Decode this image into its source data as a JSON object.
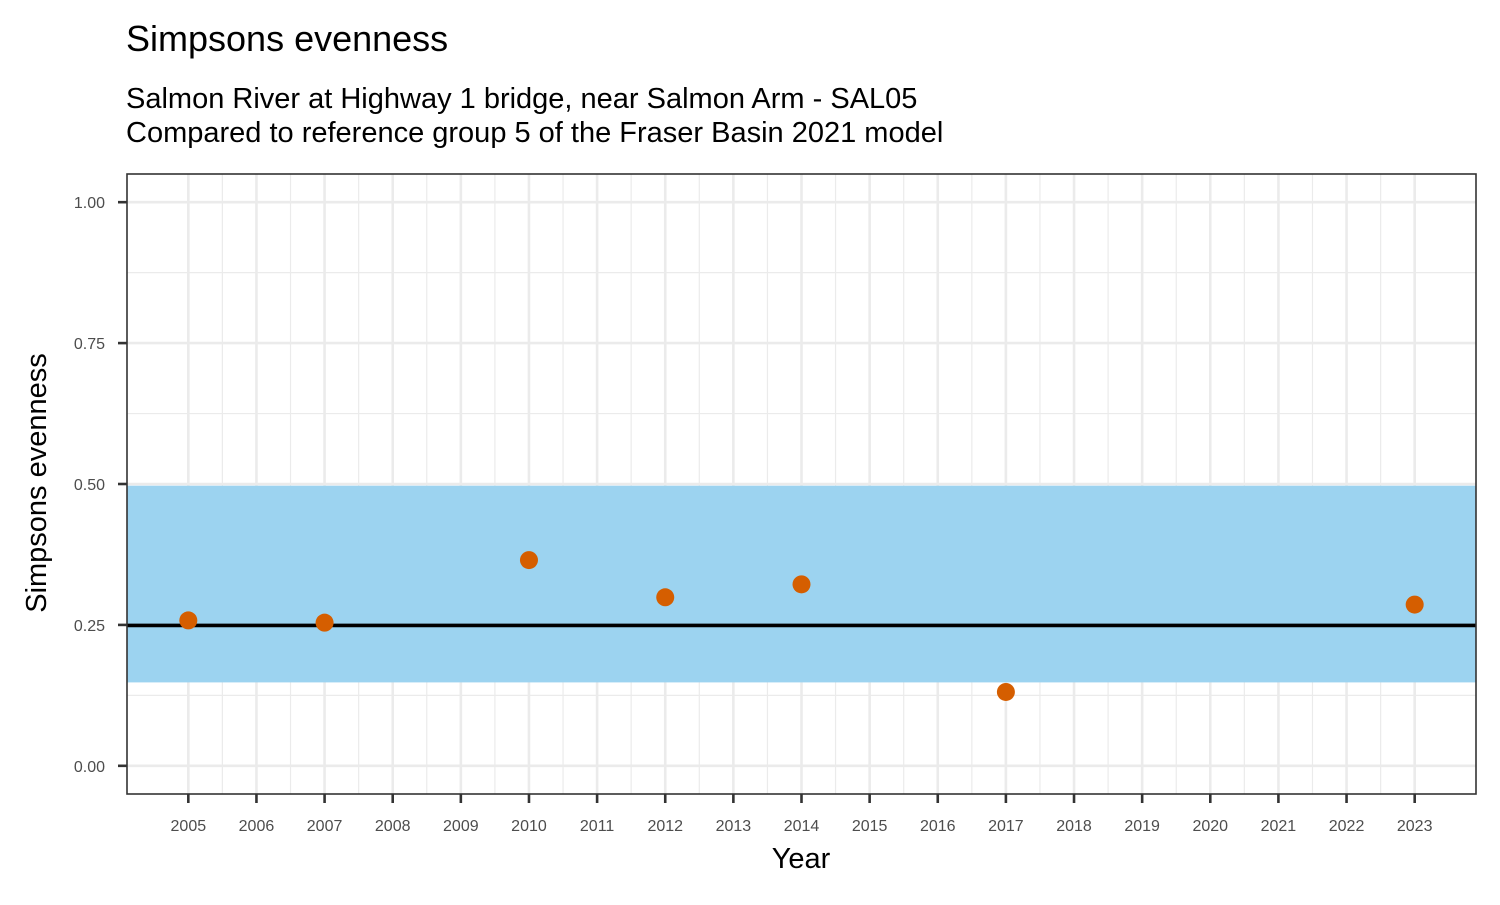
{
  "chart_data": {
    "type": "scatter",
    "title": "Simpsons evenness",
    "subtitle_lines": [
      "Salmon River at Highway 1 bridge, near Salmon Arm - SAL05",
      "Compared to reference group 5 of the Fraser Basin 2021 model"
    ],
    "xlabel": "Year",
    "ylabel": "Simpsons evenness",
    "x_categories": [
      "2005",
      "2006",
      "2007",
      "2008",
      "2009",
      "2010",
      "2011",
      "2012",
      "2013",
      "2014",
      "2015",
      "2016",
      "2017",
      "2018",
      "2019",
      "2020",
      "2021",
      "2022",
      "2023"
    ],
    "y_ticks": [
      {
        "value": 0.0,
        "label": "0.00"
      },
      {
        "value": 0.25,
        "label": "0.25"
      },
      {
        "value": 0.5,
        "label": "0.50"
      },
      {
        "value": 0.75,
        "label": "0.75"
      },
      {
        "value": 1.0,
        "label": "1.00"
      }
    ],
    "ylim": [
      -0.05,
      1.05
    ],
    "grid": true,
    "reference_band": {
      "lower": 0.148,
      "upper": 0.497,
      "color": "#9cd3f0"
    },
    "reference_line": {
      "value": 0.249,
      "color": "#000000"
    },
    "point_color": "#d55e00",
    "points": [
      {
        "x": "2005",
        "y": 0.258
      },
      {
        "x": "2007",
        "y": 0.254
      },
      {
        "x": "2010",
        "y": 0.365
      },
      {
        "x": "2012",
        "y": 0.299
      },
      {
        "x": "2014",
        "y": 0.322
      },
      {
        "x": "2017",
        "y": 0.131
      },
      {
        "x": "2023",
        "y": 0.286
      }
    ]
  }
}
